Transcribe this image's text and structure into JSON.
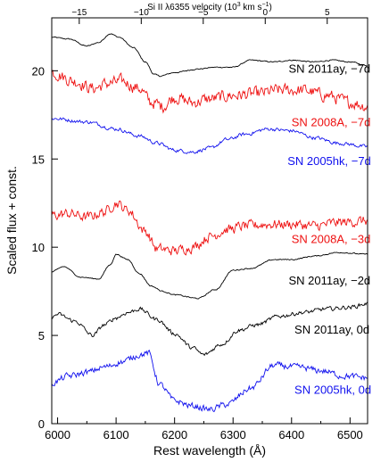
{
  "chart_data": {
    "type": "line",
    "title": "",
    "xlabel": "Rest wavelength (Å)",
    "ylabel": "Scaled flux + const.",
    "top_axis": {
      "label_prefix": "Si II λ6355 velocity (10",
      "label_exp": "3",
      "label_suffix": " km s",
      "label_exp2": "−1",
      "label_close": ")",
      "ticks": [
        -15,
        -10,
        -5,
        0,
        5
      ],
      "tick_labels": [
        "−15",
        "−10",
        "−5",
        "0",
        "5"
      ]
    },
    "xlim": [
      5990,
      6530
    ],
    "ylim": [
      0,
      23
    ],
    "xticks": [
      6000,
      6100,
      6200,
      6300,
      6400,
      6500
    ],
    "xtick_labels": [
      "6000",
      "6100",
      "6200",
      "6300",
      "6400",
      "6500"
    ],
    "yticks": [
      0,
      5,
      10,
      15,
      20
    ],
    "ytick_labels": [
      "0",
      "5",
      "10",
      "15",
      "20"
    ],
    "grid": false,
    "series": [
      {
        "name": "SN 2011ay, −7d",
        "color": "#000000",
        "noise": 0.05,
        "x": [
          5990,
          6020,
          6050,
          6070,
          6090,
          6105,
          6130,
          6150,
          6165,
          6175,
          6200,
          6240,
          6270,
          6300,
          6330,
          6370,
          6400,
          6440,
          6470,
          6500,
          6530
        ],
        "y": [
          21.9,
          21.8,
          21.4,
          21.6,
          22.1,
          21.9,
          21.3,
          20.5,
          19.8,
          19.7,
          19.9,
          20.1,
          20.2,
          20.2,
          20.6,
          20.5,
          20.6,
          20.5,
          20.6,
          20.5,
          20.3
        ]
      },
      {
        "name": "SN 2008A, −7d",
        "color": "#ee1111",
        "noise": 0.55,
        "x": [
          5990,
          6030,
          6060,
          6090,
          6110,
          6140,
          6160,
          6180,
          6200,
          6230,
          6260,
          6300,
          6340,
          6380,
          6420,
          6460,
          6500,
          6530
        ],
        "y": [
          19.9,
          19.4,
          19.0,
          19.3,
          19.4,
          19.0,
          18.2,
          18.0,
          18.5,
          18.2,
          18.4,
          18.6,
          18.7,
          18.9,
          18.9,
          18.6,
          18.2,
          18.0
        ]
      },
      {
        "name": "SN 2005hk, −7d",
        "color": "#1111ee",
        "noise": 0.16,
        "x": [
          5990,
          6050,
          6100,
          6140,
          6170,
          6200,
          6230,
          6260,
          6290,
          6320,
          6360,
          6400,
          6440,
          6480,
          6530
        ],
        "y": [
          17.3,
          17.1,
          16.7,
          16.3,
          15.9,
          15.5,
          15.4,
          15.6,
          16.1,
          16.4,
          16.7,
          16.6,
          16.2,
          15.9,
          15.7
        ]
      },
      {
        "name": "SN 2008A, −3d",
        "color": "#ee1111",
        "noise": 0.45,
        "x": [
          5990,
          6020,
          6050,
          6080,
          6100,
          6120,
          6150,
          6170,
          6200,
          6230,
          6260,
          6290,
          6320,
          6360,
          6400,
          6440,
          6480,
          6530
        ],
        "y": [
          11.8,
          11.9,
          11.7,
          12.0,
          12.5,
          12.1,
          10.9,
          9.9,
          9.8,
          10.0,
          10.6,
          11.0,
          11.2,
          11.3,
          11.3,
          11.2,
          11.4,
          11.5
        ]
      },
      {
        "name": "SN 2011ay, −2d",
        "color": "#000000",
        "noise": 0.05,
        "x": [
          5990,
          6010,
          6040,
          6070,
          6090,
          6100,
          6120,
          6140,
          6160,
          6180,
          6200,
          6240,
          6270,
          6300,
          6330,
          6370,
          6400,
          6440,
          6480,
          6530
        ],
        "y": [
          8.6,
          8.9,
          8.3,
          8.2,
          9.0,
          9.6,
          9.3,
          8.5,
          7.8,
          7.5,
          7.3,
          7.1,
          7.6,
          8.7,
          8.8,
          9.3,
          9.3,
          9.5,
          9.7,
          9.6
        ]
      },
      {
        "name": "SN 2011ay, 0d",
        "color": "#000000",
        "noise": 0.18,
        "x": [
          5990,
          6000,
          6030,
          6060,
          6080,
          6100,
          6120,
          6140,
          6170,
          6200,
          6230,
          6250,
          6280,
          6310,
          6340,
          6380,
          6420,
          6460,
          6500,
          6530
        ],
        "y": [
          6.0,
          6.2,
          5.8,
          5.0,
          5.6,
          6.0,
          6.3,
          6.5,
          5.9,
          5.1,
          4.3,
          3.9,
          4.5,
          5.3,
          5.6,
          6.1,
          6.3,
          6.5,
          6.6,
          6.8
        ]
      },
      {
        "name": "SN 2005hk, 0d",
        "color": "#1111ee",
        "noise": 0.28,
        "x": [
          5990,
          6020,
          6050,
          6080,
          6110,
          6140,
          6155,
          6175,
          6200,
          6230,
          6260,
          6290,
          6330,
          6370,
          6410,
          6450,
          6490,
          6530
        ],
        "y": [
          2.3,
          2.7,
          2.9,
          3.2,
          3.5,
          3.9,
          4.0,
          2.2,
          1.3,
          1.0,
          0.8,
          1.1,
          2.0,
          3.3,
          3.2,
          3.0,
          2.7,
          2.6
        ]
      }
    ],
    "labels": [
      {
        "text": "SN 2011ay, −7d",
        "x": 6395,
        "y": 20.15,
        "color": "#000000"
      },
      {
        "text": "SN 2008A, −7d",
        "x": 6400,
        "y": 17.1,
        "color": "#ee1111"
      },
      {
        "text": "SN 2005hk, −7d",
        "x": 6393,
        "y": 14.9,
        "color": "#1111ee"
      },
      {
        "text": "SN 2008A, −3d",
        "x": 6400,
        "y": 10.5,
        "color": "#ee1111"
      },
      {
        "text": "SN 2011ay, −2d",
        "x": 6395,
        "y": 8.15,
        "color": "#000000"
      },
      {
        "text": "SN 2011ay, 0d",
        "x": 6405,
        "y": 5.35,
        "color": "#000000"
      },
      {
        "text": "SN 2005hk, 0d",
        "x": 6405,
        "y": 1.95,
        "color": "#1111ee"
      }
    ]
  }
}
